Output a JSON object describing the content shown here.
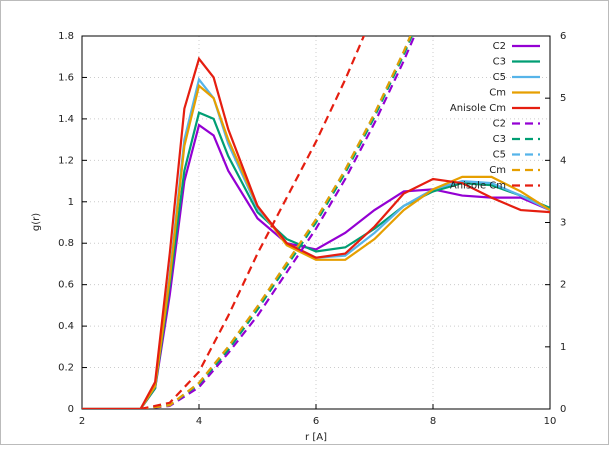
{
  "chart_data": {
    "type": "line",
    "xlabel": "r [A]",
    "ylabel": "g(r)",
    "xlim": [
      2,
      10
    ],
    "xticks": [
      2,
      4,
      6,
      8,
      10
    ],
    "ylim": [
      0,
      1.8
    ],
    "yticks": [
      0,
      0.2,
      0.4,
      0.6,
      0.8,
      1,
      1.2,
      1.4,
      1.6,
      1.8
    ],
    "y2lim": [
      0,
      6
    ],
    "y2ticks": [
      0,
      1,
      2,
      3,
      4,
      5,
      6
    ],
    "grid": true,
    "legend": "top-right",
    "series": [
      {
        "name": "C2",
        "color": "#9400d3",
        "x": [
          2,
          2.5,
          3,
          3.25,
          3.5,
          3.75,
          4,
          4.25,
          4.5,
          5,
          5.5,
          6,
          6.5,
          7,
          7.5,
          8,
          8.5,
          9,
          9.5,
          10
        ],
        "values": [
          0,
          0,
          0,
          0.1,
          0.55,
          1.1,
          1.37,
          1.32,
          1.15,
          0.92,
          0.8,
          0.77,
          0.85,
          0.96,
          1.05,
          1.06,
          1.03,
          1.02,
          1.02,
          0.96
        ]
      },
      {
        "name": "C3",
        "color": "#009e73",
        "x": [
          2,
          2.5,
          3,
          3.25,
          3.5,
          3.75,
          4,
          4.25,
          4.5,
          5,
          5.5,
          6,
          6.5,
          7,
          7.5,
          8,
          8.5,
          9,
          9.5,
          10
        ],
        "values": [
          0,
          0,
          0,
          0.1,
          0.6,
          1.15,
          1.43,
          1.4,
          1.22,
          0.95,
          0.82,
          0.76,
          0.78,
          0.87,
          0.98,
          1.05,
          1.09,
          1.08,
          1.03,
          0.97
        ]
      },
      {
        "name": "C5",
        "color": "#56b4e9",
        "x": [
          2,
          2.5,
          3,
          3.25,
          3.5,
          3.75,
          4,
          4.25,
          4.5,
          5,
          5.5,
          6,
          6.5,
          7,
          7.5,
          8,
          8.5,
          9,
          9.5,
          10
        ],
        "values": [
          0,
          0,
          0,
          0.11,
          0.65,
          1.3,
          1.59,
          1.5,
          1.28,
          0.97,
          0.8,
          0.73,
          0.74,
          0.85,
          0.98,
          1.06,
          1.1,
          1.09,
          1.03,
          0.96
        ]
      },
      {
        "name": "Cm",
        "color": "#e69f00",
        "x": [
          2,
          2.5,
          3,
          3.25,
          3.5,
          3.75,
          4,
          4.25,
          4.5,
          5,
          5.5,
          6,
          6.5,
          7,
          7.5,
          8,
          8.5,
          9,
          9.5,
          10
        ],
        "values": [
          0,
          0,
          0,
          0.11,
          0.63,
          1.27,
          1.56,
          1.5,
          1.3,
          0.98,
          0.79,
          0.72,
          0.72,
          0.82,
          0.96,
          1.06,
          1.12,
          1.12,
          1.05,
          0.96
        ]
      },
      {
        "name": "Anisole Cm",
        "color": "#e51e10",
        "x": [
          2,
          2.5,
          3,
          3.25,
          3.5,
          3.75,
          4,
          4.25,
          4.5,
          5,
          5.5,
          6,
          6.5,
          7,
          7.5,
          8,
          8.5,
          9,
          9.5,
          10
        ],
        "values": [
          0,
          0,
          0,
          0.13,
          0.75,
          1.45,
          1.69,
          1.6,
          1.35,
          0.98,
          0.8,
          0.73,
          0.75,
          0.88,
          1.04,
          1.11,
          1.09,
          1.02,
          0.96,
          0.95
        ]
      },
      {
        "name": "C2",
        "color": "#9400d3",
        "dash": true,
        "axis": "y2",
        "x": [
          3,
          3.5,
          4,
          4.5,
          5,
          5.5,
          6,
          6.5,
          7,
          7.5,
          8
        ],
        "values": [
          0,
          0.05,
          0.35,
          0.9,
          1.5,
          2.2,
          2.9,
          3.7,
          4.6,
          5.6,
          6.7
        ]
      },
      {
        "name": "C3",
        "color": "#009e73",
        "dash": true,
        "axis": "y2",
        "x": [
          3,
          3.5,
          4,
          4.5,
          5,
          5.5,
          6,
          6.5,
          7,
          7.5,
          8
        ],
        "values": [
          0,
          0.06,
          0.4,
          0.95,
          1.6,
          2.3,
          3.0,
          3.8,
          4.7,
          5.7,
          6.8
        ]
      },
      {
        "name": "C5",
        "color": "#56b4e9",
        "dash": true,
        "axis": "y2",
        "x": [
          3,
          3.5,
          4,
          4.5,
          5,
          5.5,
          6,
          6.5,
          7,
          7.5,
          8
        ],
        "values": [
          0,
          0.06,
          0.42,
          1.0,
          1.65,
          2.35,
          3.05,
          3.85,
          4.75,
          5.75,
          6.85
        ]
      },
      {
        "name": "Cm",
        "color": "#e69f00",
        "dash": true,
        "axis": "y2",
        "x": [
          3,
          3.5,
          4,
          4.5,
          5,
          5.5,
          6,
          6.5,
          7,
          7.5,
          8
        ],
        "values": [
          0,
          0.06,
          0.42,
          1.0,
          1.65,
          2.35,
          3.05,
          3.85,
          4.75,
          5.75,
          6.85
        ]
      },
      {
        "name": "Anisole Cm",
        "color": "#e51e10",
        "dash": true,
        "axis": "y2",
        "x": [
          3,
          3.5,
          4,
          4.5,
          5,
          5.5,
          6,
          6.5,
          7,
          7.5,
          8
        ],
        "values": [
          0,
          0.1,
          0.6,
          1.5,
          2.5,
          3.4,
          4.3,
          5.3,
          6.4,
          null,
          null
        ]
      }
    ]
  }
}
